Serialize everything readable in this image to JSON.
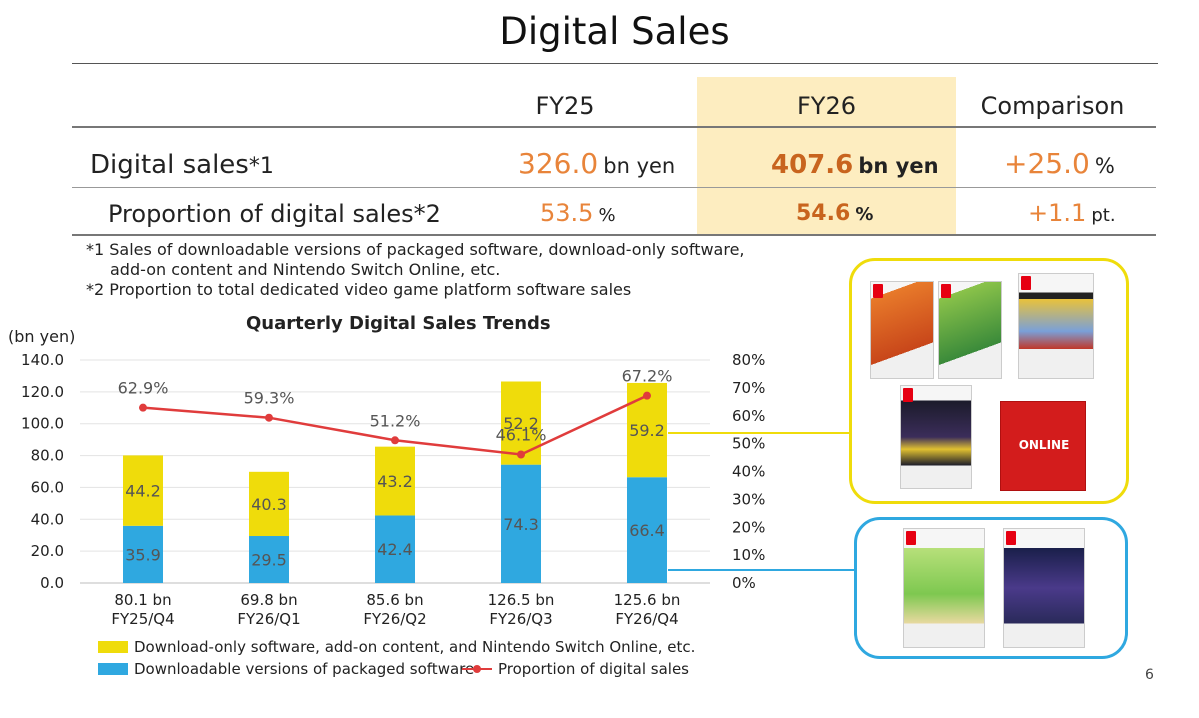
{
  "page": {
    "title": "Digital Sales",
    "page_number": "6"
  },
  "table": {
    "headers": [
      "FY25",
      "FY26",
      "Comparison"
    ],
    "rows": [
      {
        "label": "Digital sales",
        "note": "*1",
        "fy25_value": "326.0",
        "fy25_unit": "bn yen",
        "fy26_value": "407.6",
        "fy26_unit": "bn yen",
        "cmp_value": "+25.0",
        "cmp_unit": "%"
      },
      {
        "label": "Proportion of digital sales",
        "note": "*2",
        "fy25_value": "53.5",
        "fy25_unit": "%",
        "fy26_value": "54.6",
        "fy26_unit": "%",
        "cmp_value": "+1.1",
        "cmp_unit": "pt."
      }
    ]
  },
  "footnotes": {
    "n1_line1": "*1 Sales of downloadable versions of packaged software, download-only software,",
    "n1_line2": "add-on content and Nintendo Switch Online, etc.",
    "n2": "*2 Proportion to total dedicated video game platform software sales"
  },
  "colors": {
    "yellow": "#EFDC0B",
    "blue": "#2FA8E0",
    "red": "#E03C3C",
    "orange": "#E8843A",
    "band": "#FDEDC0"
  },
  "chart_data": {
    "type": "bar",
    "title": "Quarterly Digital Sales Trends",
    "ylabel": "(bn yen)",
    "ylim": [
      0,
      140
    ],
    "yticks": [
      "0.0",
      "20.0",
      "40.0",
      "60.0",
      "80.0",
      "100.0",
      "120.0",
      "140.0"
    ],
    "y2lim": [
      0,
      80
    ],
    "y2ticks": [
      "0%",
      "10%",
      "20%",
      "30%",
      "40%",
      "50%",
      "60%",
      "70%",
      "80%"
    ],
    "categories": [
      "FY25/Q4",
      "FY26/Q1",
      "FY26/Q2",
      "FY26/Q3",
      "FY26/Q4"
    ],
    "totals": [
      "80.1 bn",
      "69.8 bn",
      "85.6 bn",
      "126.5 bn",
      "125.6 bn"
    ],
    "series": [
      {
        "name": "Downloadable versions of packaged software",
        "color": "#2FA8E0",
        "values": [
          35.9,
          29.5,
          42.4,
          74.3,
          66.4
        ],
        "labels": [
          "35.9",
          "29.5",
          "42.4",
          "74.3",
          "66.4"
        ]
      },
      {
        "name": "Download-only software, add-on content, and Nintendo Switch Online, etc.",
        "color": "#EFDC0B",
        "values": [
          44.2,
          40.3,
          43.2,
          52.2,
          59.2
        ],
        "labels": [
          "44.2",
          "40.3",
          "43.2",
          "52.2",
          "59.2"
        ]
      },
      {
        "name": "Proportion of digital sales",
        "type": "line",
        "axis": "right",
        "color": "#E03C3C",
        "values": [
          62.9,
          59.3,
          51.2,
          46.1,
          67.2
        ],
        "labels": [
          "62.9%",
          "59.3%",
          "51.2%",
          "46.1%",
          "67.2%"
        ]
      }
    ],
    "legend": [
      "Download-only software, add-on content, and Nintendo Switch Online, etc.",
      "Downloadable versions of packaged software",
      "Proportion of digital sales"
    ],
    "legend_position": "bottom",
    "grid": true
  },
  "images": {
    "yellow_group": [
      "game-box",
      "game-box",
      "game-box",
      "game-box",
      "online-card"
    ],
    "blue_group": [
      "game-box",
      "game-box"
    ],
    "online_text": "ONLINE"
  }
}
